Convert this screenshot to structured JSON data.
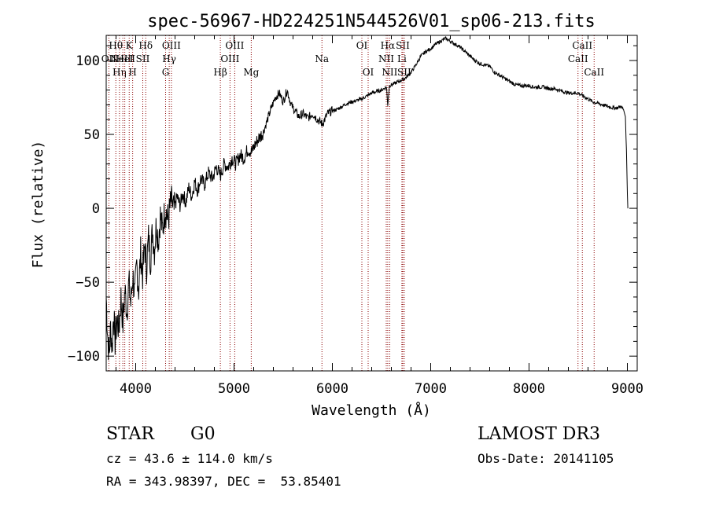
{
  "chart_data": {
    "type": "line",
    "title": "spec-56967-HD224251N544526V01_sp06-213.fits",
    "xlabel": "Wavelength (Å)",
    "ylabel": "Flux (relative)",
    "xlim": [
      3700,
      9100
    ],
    "ylim": [
      -110,
      117
    ],
    "xticks": [
      4000,
      5000,
      6000,
      7000,
      8000,
      9000
    ],
    "yticks": [
      -100,
      -50,
      0,
      50,
      100
    ],
    "grid": false,
    "line_color": "#000000",
    "marker_color": "#8b0000",
    "series": [
      {
        "name": "spectrum",
        "points": [
          [
            3700,
            -60
          ],
          [
            3715,
            -85
          ],
          [
            3730,
            -100
          ],
          [
            3745,
            -80
          ],
          [
            3760,
            -95
          ],
          [
            3775,
            -70
          ],
          [
            3790,
            -90
          ],
          [
            3810,
            -75
          ],
          [
            3830,
            -82
          ],
          [
            3850,
            -60
          ],
          [
            3870,
            -78
          ],
          [
            3890,
            -55
          ],
          [
            3910,
            -70
          ],
          [
            3930,
            -50
          ],
          [
            3950,
            -65
          ],
          [
            3970,
            -45
          ],
          [
            3990,
            -60
          ],
          [
            4010,
            -38
          ],
          [
            4030,
            -55
          ],
          [
            4050,
            -30
          ],
          [
            4070,
            -45
          ],
          [
            4090,
            -25
          ],
          [
            4110,
            -40
          ],
          [
            4130,
            -20
          ],
          [
            4150,
            -35
          ],
          [
            4170,
            -15
          ],
          [
            4190,
            -28
          ],
          [
            4210,
            -10
          ],
          [
            4230,
            -22
          ],
          [
            4250,
            -5
          ],
          [
            4270,
            -15
          ],
          [
            4300,
            0
          ],
          [
            4330,
            -8
          ],
          [
            4360,
            5
          ],
          [
            4390,
            -2
          ],
          [
            4420,
            8
          ],
          [
            4450,
            2
          ],
          [
            4480,
            10
          ],
          [
            4510,
            4
          ],
          [
            4540,
            14
          ],
          [
            4570,
            8
          ],
          [
            4600,
            18
          ],
          [
            4630,
            12
          ],
          [
            4660,
            20
          ],
          [
            4700,
            16
          ],
          [
            4740,
            24
          ],
          [
            4780,
            20
          ],
          [
            4820,
            28
          ],
          [
            4860,
            22
          ],
          [
            4900,
            30
          ],
          [
            4940,
            28
          ],
          [
            4980,
            34
          ],
          [
            5020,
            30
          ],
          [
            5060,
            36
          ],
          [
            5100,
            34
          ],
          [
            5140,
            40
          ],
          [
            5180,
            38
          ],
          [
            5220,
            44
          ],
          [
            5260,
            48
          ],
          [
            5300,
            52
          ],
          [
            5340,
            60
          ],
          [
            5380,
            68
          ],
          [
            5420,
            75
          ],
          [
            5460,
            78
          ],
          [
            5500,
            72
          ],
          [
            5540,
            80
          ],
          [
            5580,
            70
          ],
          [
            5620,
            66
          ],
          [
            5660,
            62
          ],
          [
            5700,
            64
          ],
          [
            5750,
            61
          ],
          [
            5800,
            64
          ],
          [
            5850,
            60
          ],
          [
            5900,
            57
          ],
          [
            5950,
            64
          ],
          [
            6000,
            66
          ],
          [
            6050,
            67
          ],
          [
            6100,
            69
          ],
          [
            6150,
            71
          ],
          [
            6200,
            72
          ],
          [
            6250,
            73
          ],
          [
            6300,
            74
          ],
          [
            6350,
            76
          ],
          [
            6400,
            78
          ],
          [
            6450,
            79
          ],
          [
            6500,
            80
          ],
          [
            6550,
            82
          ],
          [
            6563,
            70
          ],
          [
            6580,
            83
          ],
          [
            6620,
            84
          ],
          [
            6680,
            86
          ],
          [
            6740,
            88
          ],
          [
            6800,
            92
          ],
          [
            6850,
            97
          ],
          [
            6900,
            103
          ],
          [
            6950,
            106
          ],
          [
            7000,
            108
          ],
          [
            7050,
            111
          ],
          [
            7100,
            113
          ],
          [
            7150,
            115
          ],
          [
            7200,
            113
          ],
          [
            7250,
            111
          ],
          [
            7300,
            109
          ],
          [
            7350,
            106
          ],
          [
            7400,
            103
          ],
          [
            7450,
            100
          ],
          [
            7500,
            98
          ],
          [
            7550,
            97
          ],
          [
            7600,
            96
          ],
          [
            7650,
            92
          ],
          [
            7700,
            90
          ],
          [
            7750,
            88
          ],
          [
            7800,
            86
          ],
          [
            7850,
            84
          ],
          [
            7900,
            83
          ],
          [
            7950,
            83
          ],
          [
            8000,
            83
          ],
          [
            8050,
            82
          ],
          [
            8100,
            82
          ],
          [
            8150,
            82
          ],
          [
            8200,
            81
          ],
          [
            8250,
            81
          ],
          [
            8300,
            80
          ],
          [
            8350,
            79
          ],
          [
            8400,
            78
          ],
          [
            8450,
            78
          ],
          [
            8500,
            78
          ],
          [
            8550,
            76
          ],
          [
            8600,
            74
          ],
          [
            8650,
            72
          ],
          [
            8700,
            71
          ],
          [
            8750,
            70
          ],
          [
            8800,
            69
          ],
          [
            8850,
            68
          ],
          [
            8900,
            68
          ],
          [
            8930,
            69
          ],
          [
            8960,
            67
          ],
          [
            8980,
            62
          ],
          [
            8990,
            40
          ],
          [
            9000,
            10
          ],
          [
            9005,
            0
          ]
        ]
      }
    ],
    "markers": [
      {
        "wave": 3727,
        "label": "OII",
        "row": 1
      },
      {
        "wave": 3798,
        "label": "Hθ",
        "row": 0
      },
      {
        "wave": 3835,
        "label": "Hη",
        "row": 2
      },
      {
        "wave": 3869,
        "label": "NeIII",
        "row": 1
      },
      {
        "wave": 3889,
        "label": "HeI",
        "row": 1
      },
      {
        "wave": 3934,
        "label": "K",
        "row": 0
      },
      {
        "wave": 3969,
        "label": "H",
        "row": 2
      },
      {
        "wave": 4072,
        "label": "SII",
        "row": 1
      },
      {
        "wave": 4102,
        "label": "Hδ",
        "row": 0
      },
      {
        "wave": 4304,
        "label": "G",
        "row": 2
      },
      {
        "wave": 4341,
        "label": "Hγ",
        "row": 1
      },
      {
        "wave": 4363,
        "label": "OIII",
        "row": 0
      },
      {
        "wave": 4861,
        "label": "Hβ",
        "row": 2
      },
      {
        "wave": 4959,
        "label": "OIII",
        "row": 1
      },
      {
        "wave": 5007,
        "label": "OIII",
        "row": 0
      },
      {
        "wave": 5175,
        "label": "Mg",
        "row": 2
      },
      {
        "wave": 5894,
        "label": "Na",
        "row": 1
      },
      {
        "wave": 6300,
        "label": "OI",
        "row": 0
      },
      {
        "wave": 6364,
        "label": "OI",
        "row": 2
      },
      {
        "wave": 6548,
        "label": "NII",
        "row": 1
      },
      {
        "wave": 6563,
        "label": "Hα",
        "row": 0
      },
      {
        "wave": 6583,
        "label": "NII",
        "row": 2
      },
      {
        "wave": 6707,
        "label": "Li",
        "row": 1
      },
      {
        "wave": 6716,
        "label": "SII",
        "row": 0
      },
      {
        "wave": 6731,
        "label": "SII",
        "row": 2
      },
      {
        "wave": 8498,
        "label": "CaII",
        "row": 1
      },
      {
        "wave": 8542,
        "label": "CaII",
        "row": 0
      },
      {
        "wave": 8662,
        "label": "CaII",
        "row": 2
      }
    ]
  },
  "info": {
    "class": "STAR",
    "subclass": "G0",
    "survey": "LAMOST DR3",
    "redshift": "cz = 43.6 ± 114.0 km/s",
    "obs_date": "Obs-Date: 20141105",
    "coords": "RA = 343.98397, DEC =  53.85401"
  }
}
